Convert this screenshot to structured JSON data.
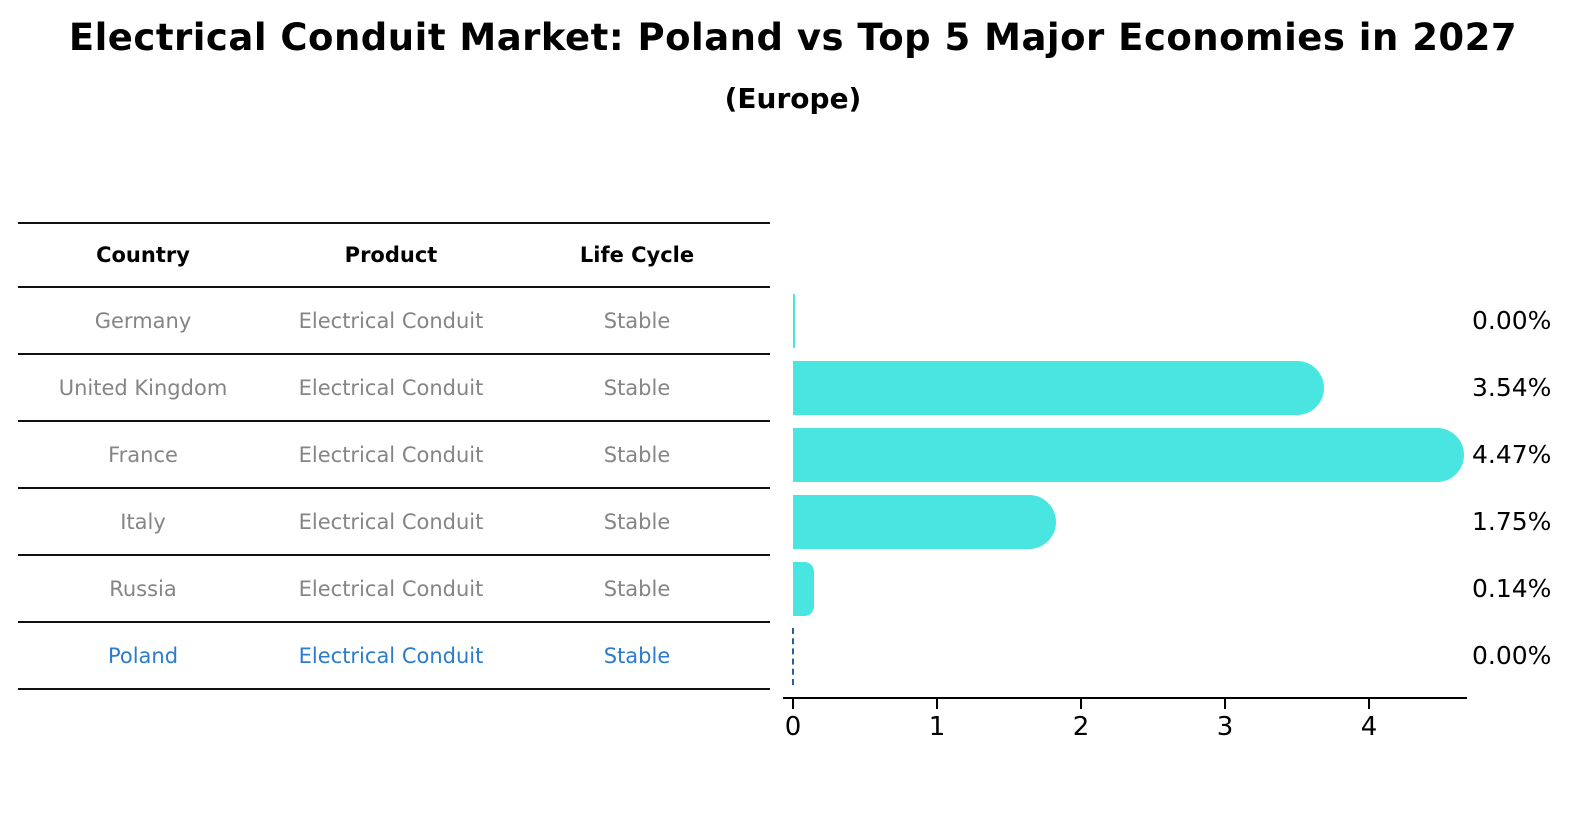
{
  "title": "Electrical Conduit Market: Poland vs Top 5 Major Economies in 2027",
  "subtitle": "(Europe)",
  "table": {
    "headers": [
      "Country",
      "Product",
      "Life Cycle"
    ],
    "rows": [
      {
        "country": "Germany",
        "product": "Electrical Conduit",
        "life_cycle": "Stable",
        "highlight": false
      },
      {
        "country": "United Kingdom",
        "product": "Electrical Conduit",
        "life_cycle": "Stable",
        "highlight": false
      },
      {
        "country": "France",
        "product": "Electrical Conduit",
        "life_cycle": "Stable",
        "highlight": false
      },
      {
        "country": "Italy",
        "product": "Electrical Conduit",
        "life_cycle": "Stable",
        "highlight": false
      },
      {
        "country": "Russia",
        "product": "Electrical Conduit",
        "life_cycle": "Stable",
        "highlight": true
      },
      {
        "country": "Poland",
        "product": "Electrical Conduit",
        "life_cycle": "Stable",
        "highlight": true
      }
    ]
  },
  "chart_data": {
    "type": "bar",
    "orientation": "horizontal",
    "title": "Electrical Conduit Market: Poland vs Top 5 Major Economies in 2027",
    "subtitle": "(Europe)",
    "categories": [
      "Germany",
      "United Kingdom",
      "France",
      "Italy",
      "Russia",
      "Poland"
    ],
    "values": [
      0.0,
      3.54,
      4.47,
      1.75,
      0.14,
      0.0
    ],
    "value_labels": [
      "0.00%",
      "3.54%",
      "4.47%",
      "1.75%",
      "0.14%",
      "0.00%"
    ],
    "x_ticks": [
      "0",
      "1",
      "2",
      "3",
      "4"
    ],
    "xlim": [
      0,
      4.7
    ],
    "grid": false,
    "legend": false,
    "bar_color": "#48e5e1",
    "highlight_category": "Poland",
    "highlight_marker": "blue dashed line at 0"
  },
  "colors": {
    "bar": "#48e5e1",
    "table_text": "#858585",
    "highlight_text": "#2b7bce",
    "dashed_marker": "#2a5f9e",
    "lines": "#111111",
    "background": "#ffffff"
  }
}
